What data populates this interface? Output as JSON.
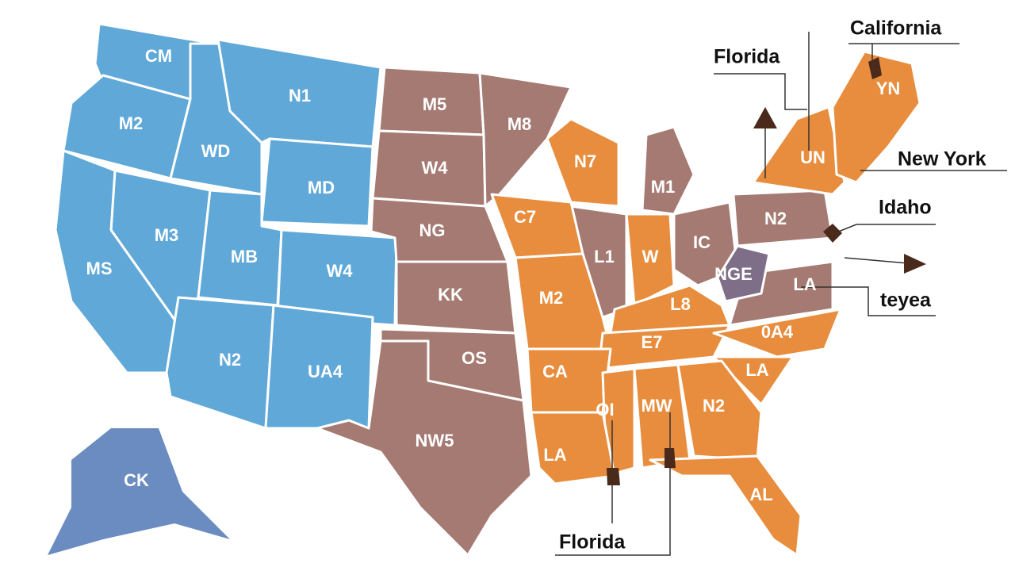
{
  "regions": [
    {
      "label": "CM"
    },
    {
      "label": "M2"
    },
    {
      "label": "N1"
    },
    {
      "label": "WD"
    },
    {
      "label": "MD"
    },
    {
      "label": "M3"
    },
    {
      "label": "MS"
    },
    {
      "label": "MB"
    },
    {
      "label": "W4"
    },
    {
      "label": "N2"
    },
    {
      "label": "UA4"
    },
    {
      "label": "M5"
    },
    {
      "label": "M8"
    },
    {
      "label": "W4"
    },
    {
      "label": "NG"
    },
    {
      "label": "KK"
    },
    {
      "label": "OS"
    },
    {
      "label": "NW5"
    },
    {
      "label": "L1"
    },
    {
      "label": "M1"
    },
    {
      "label": "IC"
    },
    {
      "label": "N2"
    },
    {
      "label": "LA"
    },
    {
      "label": "NGE"
    },
    {
      "label": "N7"
    },
    {
      "label": "C7"
    },
    {
      "label": "M2"
    },
    {
      "label": "W"
    },
    {
      "label": "L8"
    },
    {
      "label": "E7"
    },
    {
      "label": "0A4"
    },
    {
      "label": "CA"
    },
    {
      "label": "LA"
    },
    {
      "label": "OI"
    },
    {
      "label": "MW"
    },
    {
      "label": "N2"
    },
    {
      "label": "LA"
    },
    {
      "label": "AL"
    },
    {
      "label": "UN"
    },
    {
      "label": "YN"
    },
    {
      "label": "CK"
    }
  ],
  "callouts": [
    {
      "label": "California"
    },
    {
      "label": "Florida"
    },
    {
      "label": "New York"
    },
    {
      "label": "Idaho"
    },
    {
      "label": "teyea"
    },
    {
      "label": "Florida"
    }
  ]
}
